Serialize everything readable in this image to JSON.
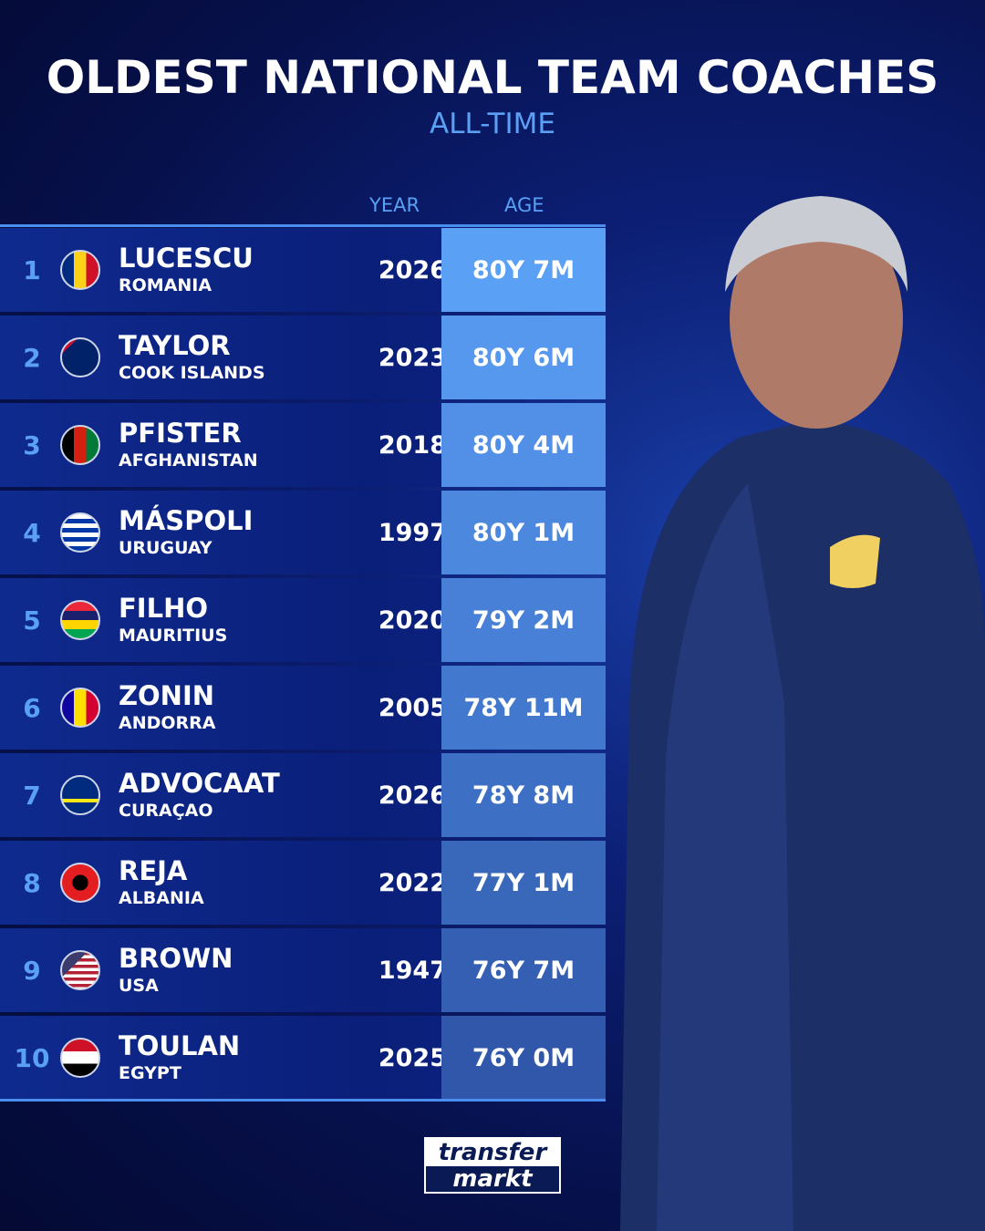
{
  "title": "OLDEST NATIONAL TEAM COACHES",
  "subtitle": "ALL-TIME",
  "columns": {
    "year": "YEAR",
    "age": "AGE"
  },
  "rows": [
    {
      "rank": "1",
      "name": "LUCESCU",
      "country": "ROMANIA",
      "year": "2026",
      "age": "80Y 7M",
      "flag": "romania-flag"
    },
    {
      "rank": "2",
      "name": "TAYLOR",
      "country": "COOK ISLANDS",
      "year": "2023",
      "age": "80Y 6M",
      "flag": "cook-islands-flag"
    },
    {
      "rank": "3",
      "name": "PFISTER",
      "country": "AFGHANISTAN",
      "year": "2018",
      "age": "80Y 4M",
      "flag": "afghanistan-flag"
    },
    {
      "rank": "4",
      "name": "MÁSPOLI",
      "country": "URUGUAY",
      "year": "1997",
      "age": "80Y 1M",
      "flag": "uruguay-flag"
    },
    {
      "rank": "5",
      "name": "FILHO",
      "country": "MAURITIUS",
      "year": "2020",
      "age": "79Y 2M",
      "flag": "mauritius-flag"
    },
    {
      "rank": "6",
      "name": "ZONIN",
      "country": "ANDORRA",
      "year": "2005",
      "age": "78Y 11M",
      "flag": "andorra-flag"
    },
    {
      "rank": "7",
      "name": "ADVOCAAT",
      "country": "CURAÇAO",
      "year": "2026",
      "age": "78Y 8M",
      "flag": "curacao-flag"
    },
    {
      "rank": "8",
      "name": "REJA",
      "country": "ALBANIA",
      "year": "2022",
      "age": "77Y 1M",
      "flag": "albania-flag"
    },
    {
      "rank": "9",
      "name": "BROWN",
      "country": "USA",
      "year": "1947",
      "age": "76Y 7M",
      "flag": "usa-flag"
    },
    {
      "rank": "10",
      "name": "TOULAN",
      "country": "EGYPT",
      "year": "2025",
      "age": "76Y 0M",
      "flag": "egypt-flag"
    }
  ],
  "logo": {
    "line1": "transfer",
    "line2": "markt"
  },
  "colors": {
    "accent": "#5aa0f5",
    "age_top": "#5aa0f5",
    "age_bottom": "#3050a8"
  }
}
